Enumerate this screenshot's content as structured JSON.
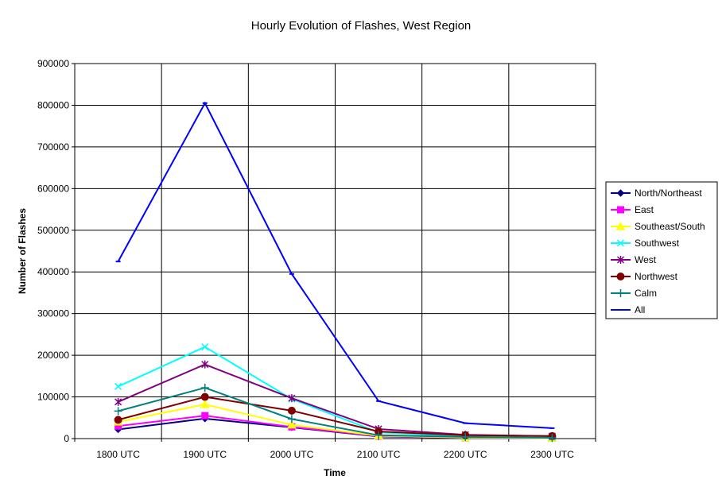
{
  "chart_data": {
    "type": "line",
    "title": "Hourly Evolution of Flashes, West Region",
    "xlabel": "Time",
    "ylabel": "Number of Flashes",
    "categories": [
      "1800 UTC",
      "1900 UTC",
      "2000 UTC",
      "2100 UTC",
      "2200 UTC",
      "2300 UTC"
    ],
    "ylim": [
      0,
      900000
    ],
    "yticks": [
      "0",
      "100000",
      "200000",
      "300000",
      "400000",
      "500000",
      "600000",
      "700000",
      "800000",
      "900000"
    ],
    "grid": true,
    "legend_position": "right",
    "series": [
      {
        "name": "North/Northeast",
        "color": "#000080",
        "marker": "diamond",
        "values": [
          22000,
          48000,
          27000,
          5000,
          2000,
          1000
        ]
      },
      {
        "name": "East",
        "color": "#ff00ff",
        "marker": "square",
        "values": [
          30000,
          55000,
          28000,
          6000,
          2000,
          1000
        ]
      },
      {
        "name": "Southeast/South",
        "color": "#ffff00",
        "marker": "triangle",
        "values": [
          40000,
          82000,
          33000,
          7000,
          2500,
          1000
        ]
      },
      {
        "name": "Southwest",
        "color": "#00ffff",
        "marker": "x",
        "values": [
          125000,
          220000,
          95000,
          15000,
          5000,
          3000
        ]
      },
      {
        "name": "West",
        "color": "#800080",
        "marker": "star",
        "values": [
          88000,
          178000,
          97000,
          23000,
          9000,
          6000
        ]
      },
      {
        "name": "Northwest",
        "color": "#800000",
        "marker": "circle",
        "values": [
          45000,
          100000,
          67000,
          17000,
          8000,
          6000
        ]
      },
      {
        "name": "Calm",
        "color": "#008080",
        "marker": "plus",
        "values": [
          66000,
          122000,
          47000,
          8000,
          4000,
          2000
        ]
      },
      {
        "name": "All",
        "color": "#0000ff",
        "marker": "dash",
        "values": [
          425000,
          805000,
          395000,
          90000,
          37000,
          25000
        ]
      }
    ]
  }
}
